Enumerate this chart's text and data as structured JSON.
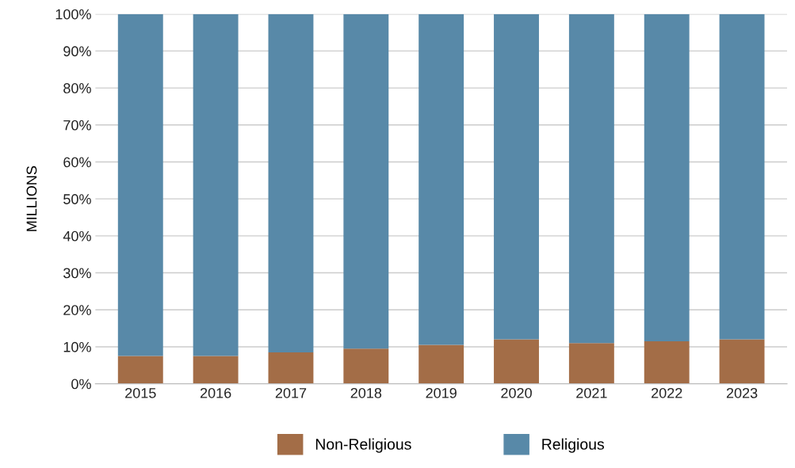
{
  "chart_data": {
    "type": "bar",
    "stacked": true,
    "ylabel": "MILLIONS",
    "categories": [
      "2015",
      "2016",
      "2017",
      "2018",
      "2019",
      "2020",
      "2021",
      "2022",
      "2023"
    ],
    "series": [
      {
        "name": "Non-Religious",
        "color": "#a36d47",
        "values": [
          7.5,
          7.5,
          8.5,
          9.5,
          10.5,
          12,
          11,
          11.5,
          12
        ]
      },
      {
        "name": "Religious",
        "color": "#5889a8",
        "values": [
          92.5,
          92.5,
          91.5,
          90.5,
          89.5,
          88,
          89,
          88.5,
          88
        ]
      }
    ],
    "ylim": [
      0,
      100
    ],
    "yticks": [
      {
        "value": 0,
        "label": "0%"
      },
      {
        "value": 10,
        "label": "10%"
      },
      {
        "value": 20,
        "label": "20%"
      },
      {
        "value": 30,
        "label": "30%"
      },
      {
        "value": 40,
        "label": "40%"
      },
      {
        "value": 50,
        "label": "50%"
      },
      {
        "value": 60,
        "label": "60%"
      },
      {
        "value": 70,
        "label": "70%"
      },
      {
        "value": 80,
        "label": "80%"
      },
      {
        "value": 90,
        "label": "90%"
      },
      {
        "value": 100,
        "label": "100%"
      }
    ],
    "grid": "y",
    "legend": "bottom"
  }
}
